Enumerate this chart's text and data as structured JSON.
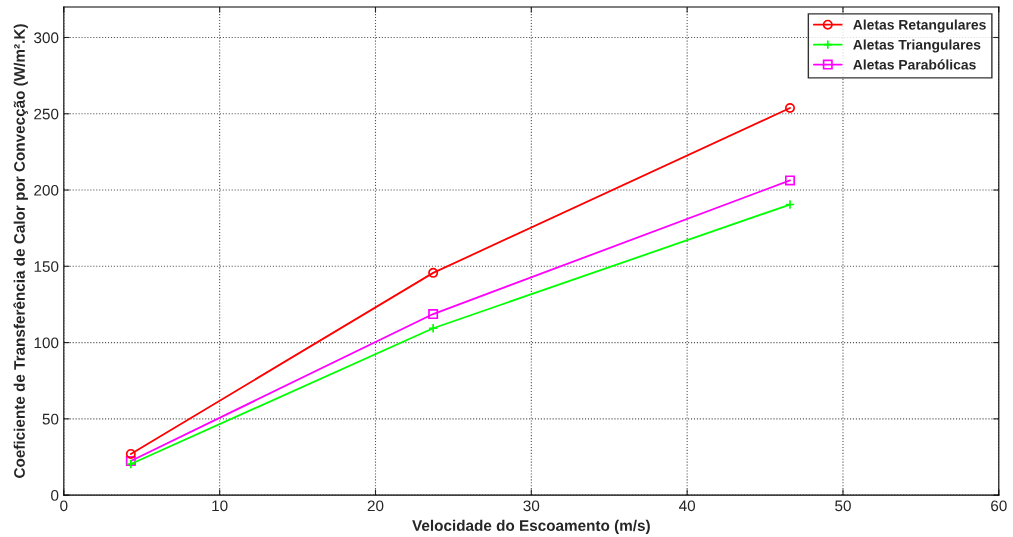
{
  "chart_data": {
    "type": "line",
    "xlabel": "Velocidade do Escoamento (m/s)",
    "ylabel": "Coeficiente de Transferência de Calor por Convecção (W/m².K)",
    "xlim": [
      0,
      60
    ],
    "ylim": [
      0,
      320
    ],
    "xticks": [
      0,
      10,
      20,
      30,
      40,
      50,
      60
    ],
    "yticks": [
      0,
      50,
      100,
      150,
      200,
      250,
      300
    ],
    "grid": true,
    "legend": "top right",
    "series": [
      {
        "name": "Aletas Retangulares",
        "color": "#ff0000",
        "marker": "circle",
        "x": [
          4.3,
          23.7,
          46.6
        ],
        "values": [
          27,
          145.7,
          253.8
        ]
      },
      {
        "name": "Aletas Triangulares",
        "color": "#00ff00",
        "marker": "cross",
        "x": [
          4.3,
          23.7,
          46.6
        ],
        "values": [
          20.4,
          109.4,
          190.5
        ]
      },
      {
        "name": "Aletas Parabólicas",
        "color": "#ff00ff",
        "marker": "square",
        "x": [
          4.3,
          23.7,
          46.6
        ],
        "values": [
          22.4,
          118.7,
          206.3
        ]
      }
    ]
  }
}
